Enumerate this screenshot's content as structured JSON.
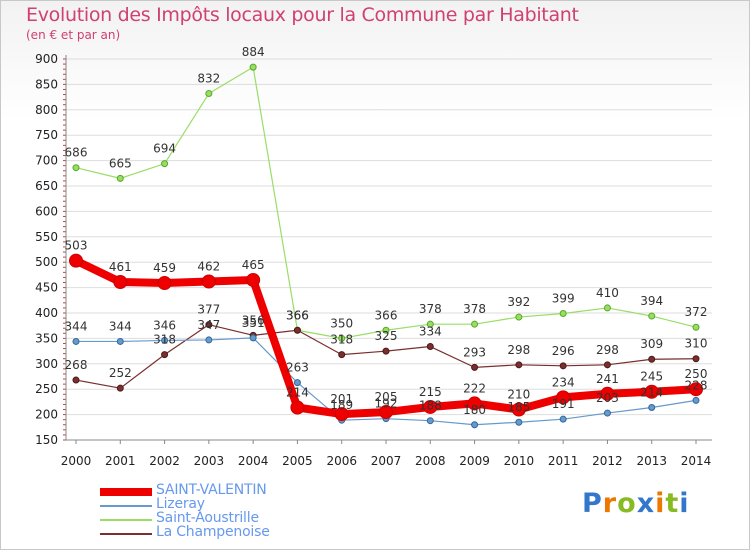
{
  "header": {
    "title": "Evolution des Impôts locaux pour la Commune par Habitant",
    "subtitle": "(en € et par an)"
  },
  "brand": {
    "letters": [
      "P",
      "r",
      "o",
      "x",
      "i",
      "t",
      "i"
    ]
  },
  "colors": {
    "title": "#d04070",
    "SAINT-VALENTIN": "#ee0000",
    "Lizeray": "#6699cc",
    "Saint-Aoustrille": "#99dd66",
    "La Champenoise": "#7a2e2e",
    "grid": "#dddddd",
    "axis_text": "#222222",
    "brand_letters": [
      "#3377cc",
      "#ee7700",
      "#88bb22",
      "#3377cc",
      "#ee7700",
      "#88bb22",
      "#3377cc"
    ]
  },
  "chart_data": {
    "type": "line",
    "title": "Evolution des Impôts locaux pour la Commune par Habitant",
    "ylabel": "(en € et par an)",
    "xlabel": "",
    "ylim": [
      150,
      900
    ],
    "yticks": [
      150,
      200,
      250,
      300,
      350,
      400,
      450,
      500,
      550,
      600,
      650,
      700,
      750,
      800,
      850,
      900
    ],
    "grid": "horizontal",
    "legend_position": "bottom-left",
    "categories": [
      "2000",
      "2001",
      "2002",
      "2003",
      "2004",
      "2005",
      "2006",
      "2007",
      "2008",
      "2009",
      "2010",
      "2011",
      "2012",
      "2013",
      "2014"
    ],
    "series": [
      {
        "name": "Saint-Aoustrille",
        "values": [
          686,
          665,
          694,
          832,
          884,
          366,
          350,
          366,
          378,
          378,
          392,
          399,
          410,
          394,
          372
        ]
      },
      {
        "name": "La Champenoise",
        "values": [
          268,
          252,
          318,
          377,
          356,
          366,
          318,
          325,
          334,
          293,
          298,
          296,
          298,
          309,
          310
        ]
      },
      {
        "name": "Lizeray",
        "values": [
          344,
          344,
          346,
          347,
          351,
          263,
          189,
          192,
          188,
          180,
          185,
          191,
          203,
          214,
          228
        ]
      },
      {
        "name": "SAINT-VALENTIN",
        "values": [
          503,
          461,
          459,
          462,
          465,
          214,
          201,
          205,
          215,
          222,
          210,
          234,
          241,
          245,
          250
        ]
      }
    ],
    "legend": [
      "SAINT-VALENTIN",
      "Lizeray",
      "Saint-Aoustrille",
      "La Champenoise"
    ]
  }
}
